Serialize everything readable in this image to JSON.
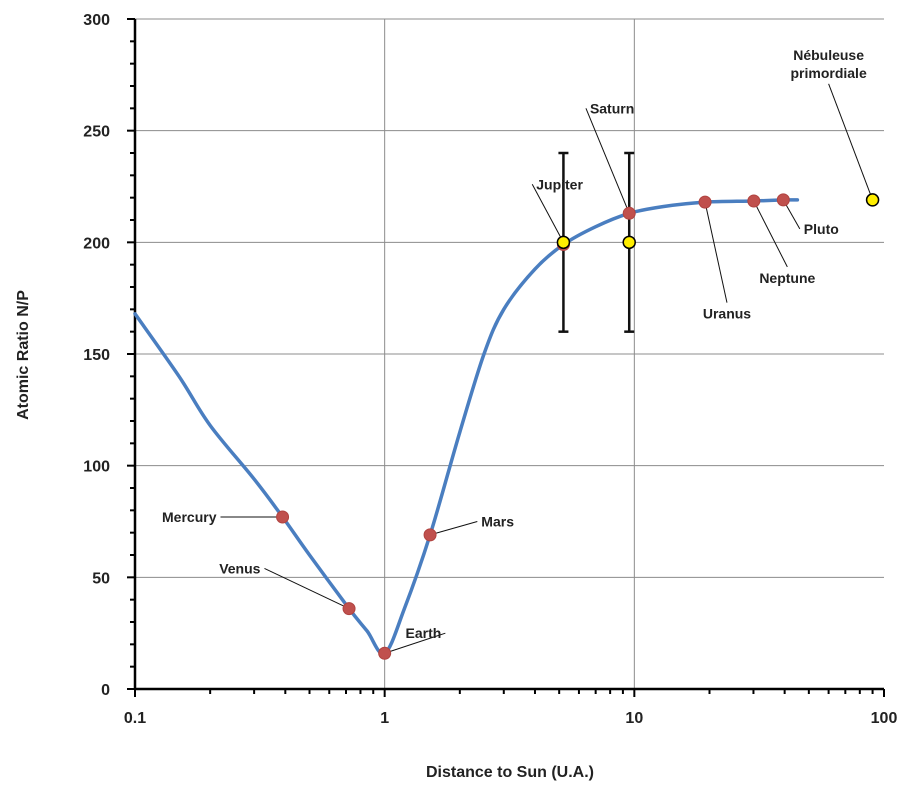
{
  "chart_data": {
    "type": "scatter",
    "title": "",
    "xlabel": "Distance to Sun (U.A.)",
    "ylabel": "Atomic Ratio N/P",
    "xscale": "log",
    "xlim": [
      0.1,
      100
    ],
    "ylim": [
      0,
      300
    ],
    "x_ticks": [
      "0.1",
      "1",
      "10",
      "100"
    ],
    "y_ticks": [
      "0",
      "50",
      "100",
      "150",
      "200",
      "250",
      "300"
    ],
    "grid": true,
    "legend": "none",
    "colors": {
      "curve": "#4a7ec0",
      "planet_marker": "#c0504d",
      "observed_marker": "#ffee00",
      "error_bar": "#111111",
      "grid": "#8c8c8c"
    },
    "series": [
      {
        "kind": "curve",
        "points": [
          [
            0.1,
            168
          ],
          [
            0.15,
            140
          ],
          [
            0.2,
            118
          ],
          [
            0.3,
            94
          ],
          [
            0.39,
            77
          ],
          [
            0.5,
            60
          ],
          [
            0.72,
            36
          ],
          [
            0.85,
            26
          ],
          [
            1.0,
            16
          ],
          [
            1.2,
            36
          ],
          [
            1.52,
            69
          ],
          [
            2.0,
            115
          ],
          [
            2.5,
            150
          ],
          [
            3.0,
            170
          ],
          [
            4.0,
            188
          ],
          [
            5.2,
            199
          ],
          [
            7.0,
            207
          ],
          [
            9.54,
            213
          ],
          [
            13.0,
            216
          ],
          [
            19.2,
            218
          ],
          [
            30.1,
            218.5
          ],
          [
            39.5,
            219
          ],
          [
            45,
            219
          ]
        ]
      },
      {
        "kind": "model-points",
        "points": [
          {
            "name": "Mercury",
            "x": 0.39,
            "y": 77
          },
          {
            "name": "Venus",
            "x": 0.72,
            "y": 36
          },
          {
            "name": "Earth",
            "x": 1.0,
            "y": 16
          },
          {
            "name": "Mars",
            "x": 1.52,
            "y": 69
          },
          {
            "name": "",
            "x": 5.2,
            "y": 199
          },
          {
            "name": "Saturn",
            "x": 9.54,
            "y": 213
          },
          {
            "name": "Uranus",
            "x": 19.2,
            "y": 218
          },
          {
            "name": "Neptune",
            "x": 30.1,
            "y": 218.5
          },
          {
            "name": "Pluto",
            "x": 39.5,
            "y": 219
          }
        ]
      },
      {
        "kind": "observed-points",
        "points": [
          {
            "name": "Jupiter",
            "x": 5.2,
            "y": 200,
            "err_low": 160,
            "err_high": 240
          },
          {
            "name": "",
            "x": 9.54,
            "y": 200,
            "err_low": 160,
            "err_high": 240
          },
          {
            "name": "Nébuleuse primordiale",
            "x": 90,
            "y": 219
          }
        ]
      }
    ],
    "annotations": [
      {
        "text": "Mercury",
        "lines": [
          "Mercury"
        ],
        "at": [
          0.39,
          77
        ],
        "label_at": [
          0.22,
          77
        ],
        "anchor": "end"
      },
      {
        "text": "Venus",
        "lines": [
          "Venus"
        ],
        "at": [
          0.72,
          36
        ],
        "label_at": [
          0.33,
          54
        ],
        "anchor": "end"
      },
      {
        "text": "Earth",
        "lines": [
          "Earth"
        ],
        "at": [
          1.0,
          16
        ],
        "label_at": [
          1.75,
          25
        ],
        "anchor": "end"
      },
      {
        "text": "Mars",
        "lines": [
          "Mars"
        ],
        "at": [
          1.52,
          69
        ],
        "label_at": [
          2.35,
          75
        ],
        "anchor": "start"
      },
      {
        "text": "Jupiter",
        "lines": [
          "Jupiter"
        ],
        "at": [
          5.2,
          200
        ],
        "label_at": [
          3.9,
          226
        ],
        "anchor": "start"
      },
      {
        "text": "Saturn",
        "lines": [
          "Saturn"
        ],
        "at": [
          9.54,
          213
        ],
        "label_at": [
          6.4,
          260
        ],
        "anchor": "start"
      },
      {
        "text": "Uranus",
        "lines": [
          "Uranus"
        ],
        "at": [
          19.2,
          218
        ],
        "label_at": [
          23.5,
          173
        ],
        "anchor": "middle"
      },
      {
        "text": "Neptune",
        "lines": [
          "Neptune"
        ],
        "at": [
          30.1,
          218.5
        ],
        "label_at": [
          41,
          189
        ],
        "anchor": "middle"
      },
      {
        "text": "Pluto",
        "lines": [
          "Pluto"
        ],
        "at": [
          39.5,
          219
        ],
        "label_at": [
          46,
          206
        ],
        "anchor": "start"
      },
      {
        "text": "Nébuleuse primordiale",
        "lines": [
          "Nébuleuse",
          "primordiale"
        ],
        "at": [
          90,
          219
        ],
        "label_at": [
          60,
          271
        ],
        "anchor": "middle"
      }
    ]
  }
}
